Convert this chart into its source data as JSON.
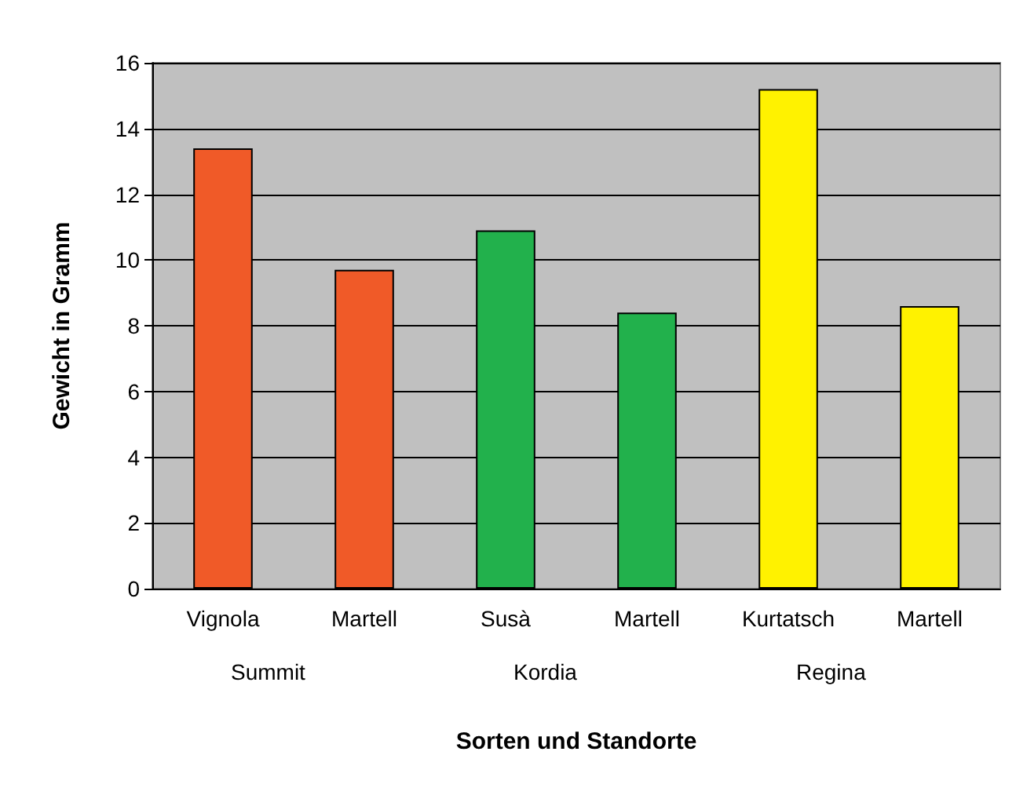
{
  "chart_data": {
    "type": "bar",
    "xlabel": "Sorten und Standorte",
    "ylabel": "Gewicht in Gramm",
    "categories": [
      "Vignola",
      "Martell",
      "Susà",
      "Martell",
      "Kurtatsch",
      "Martell"
    ],
    "values": [
      13.4,
      9.7,
      10.9,
      8.4,
      15.2,
      8.6
    ],
    "colors": [
      "#f05a28",
      "#f05a28",
      "#22b14c",
      "#22b14c",
      "#fff200",
      "#fff200"
    ],
    "ylim": [
      0,
      16
    ],
    "yticks": [
      0,
      2,
      4,
      6,
      8,
      10,
      12,
      14,
      16
    ],
    "grid": "y",
    "annotations": [
      "Summit",
      "Kordia",
      "Regina"
    ]
  }
}
